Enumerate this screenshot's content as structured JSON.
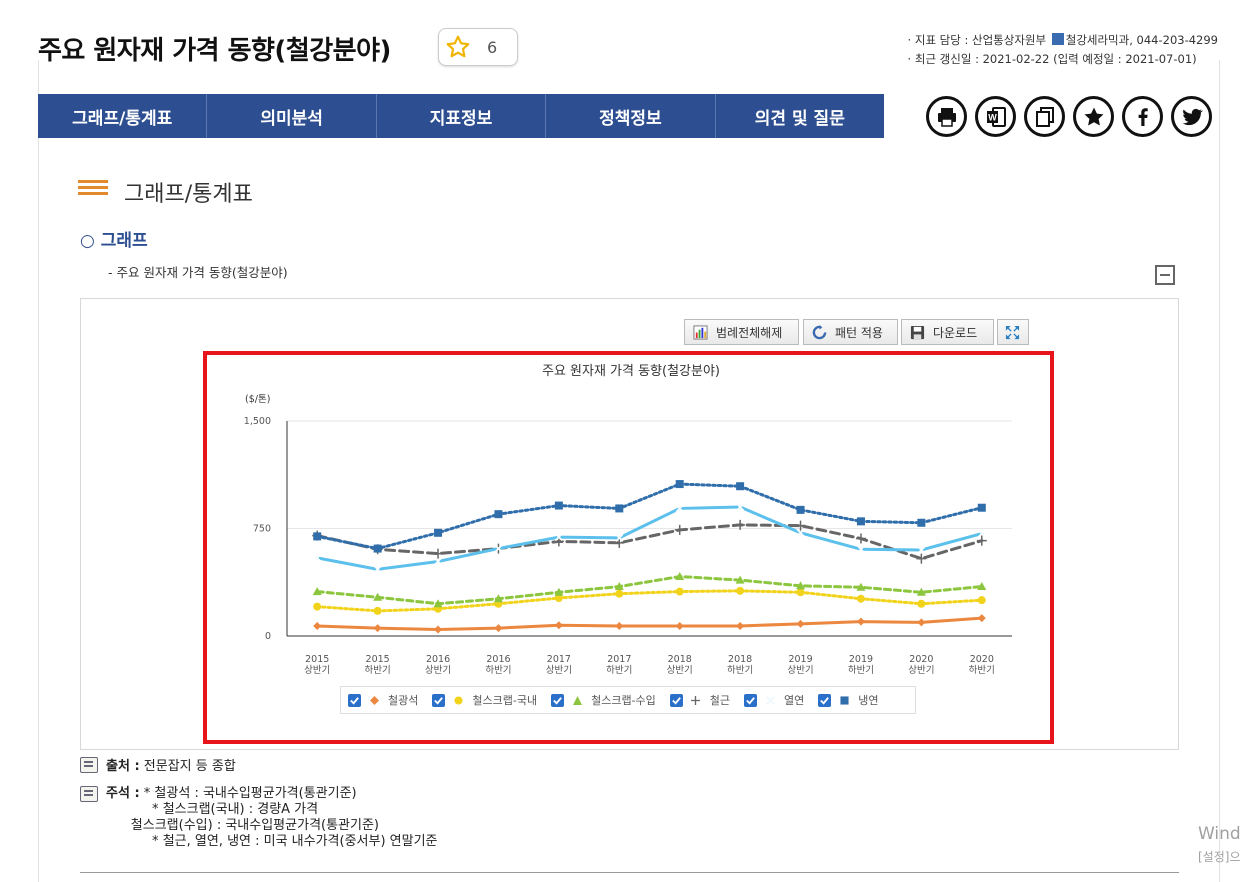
{
  "page": {
    "title": "주요 원자재 가격 동향(철강분야)",
    "favorite_count": "6",
    "meta_line1_prefix": "· 지표 담당 : 산업통상자원부",
    "meta_line1_suffix": "철강세라믹과, 044-203-4299",
    "meta_line2": "· 최근 갱신일 : 2021-02-22 (입력 예정일 : 2021-07-01)"
  },
  "tabs": [
    {
      "label": "그래프/통계표"
    },
    {
      "label": "의미분석"
    },
    {
      "label": "지표정보"
    },
    {
      "label": "정책정보"
    },
    {
      "label": "의견 및 질문"
    }
  ],
  "tool_icons": [
    "print-icon",
    "word-icon",
    "copy-icon",
    "star-icon",
    "facebook-icon",
    "twitter-icon"
  ],
  "section": {
    "title": "그래프/통계표",
    "subtitle": "○ 그래프",
    "graph_caption": "- 주요 원자재 가격 동향(철강분야)"
  },
  "chart_buttons": {
    "legend_toggle": "범례전체해제",
    "pattern": "패턴 적용",
    "download": "다운로드"
  },
  "chart_data": {
    "type": "line",
    "title": "주요 원자재 가격 동향(철강분야)",
    "unit_label": "($/톤)",
    "ylim": [
      0,
      1500
    ],
    "yticks": [
      "0",
      "750",
      "1,500"
    ],
    "ytick_values": [
      0,
      750,
      1500
    ],
    "grid": true,
    "legend_position": "bottom",
    "categories": [
      [
        "2015",
        "상반기"
      ],
      [
        "2015",
        "하반기"
      ],
      [
        "2016",
        "상반기"
      ],
      [
        "2016",
        "하반기"
      ],
      [
        "2017",
        "상반기"
      ],
      [
        "2017",
        "하반기"
      ],
      [
        "2018",
        "상반기"
      ],
      [
        "2018",
        "하반기"
      ],
      [
        "2019",
        "상반기"
      ],
      [
        "2019",
        "하반기"
      ],
      [
        "2020",
        "상반기"
      ],
      [
        "2020",
        "하반기"
      ]
    ],
    "series": [
      {
        "name": "철광석",
        "color": "#ec8740",
        "marker": "diamond",
        "dash": "solid",
        "values": [
          70,
          55,
          45,
          55,
          75,
          70,
          70,
          70,
          85,
          100,
          95,
          125
        ]
      },
      {
        "name": "철스크랩-국내",
        "color": "#f2d31b",
        "marker": "circle",
        "dash": "dot",
        "values": [
          205,
          175,
          190,
          225,
          265,
          295,
          310,
          315,
          305,
          260,
          225,
          250
        ]
      },
      {
        "name": "철스크랩-수입",
        "color": "#8cc63e",
        "marker": "triangle",
        "dash": "dash",
        "values": [
          310,
          270,
          225,
          260,
          305,
          345,
          415,
          390,
          350,
          340,
          305,
          345
        ]
      },
      {
        "name": "철근",
        "color": "#666666",
        "marker": "plus",
        "dash": "longdash",
        "values": [
          700,
          605,
          575,
          610,
          660,
          650,
          740,
          775,
          770,
          680,
          540,
          665
        ]
      },
      {
        "name": "열연",
        "color": "#5bc0eb",
        "marker": "x",
        "dash": "solid",
        "values": [
          545,
          465,
          520,
          610,
          690,
          685,
          890,
          900,
          720,
          605,
          600,
          715
        ]
      },
      {
        "name": "냉연",
        "color": "#2f6eab",
        "marker": "square",
        "dash": "dot",
        "values": [
          695,
          610,
          720,
          850,
          910,
          890,
          1060,
          1045,
          880,
          800,
          790,
          895
        ]
      }
    ]
  },
  "footer": {
    "source_label": "출처 :",
    "source_text": "전문잡지 등 종합",
    "remarks_label": "주석 :",
    "remarks": [
      "* 철광석 : 국내수입평균가격(통관기준)",
      "  * 철스크랩(국내) : 경량A 가격",
      "철스크랩(수입) : 국내수입평균가격(통관기준)",
      "  * 철근, 열연, 냉연 : 미국 내수가격(중서부) 연말기준"
    ]
  },
  "watermark": {
    "line1": "Wind",
    "line2": "[설정]으"
  }
}
